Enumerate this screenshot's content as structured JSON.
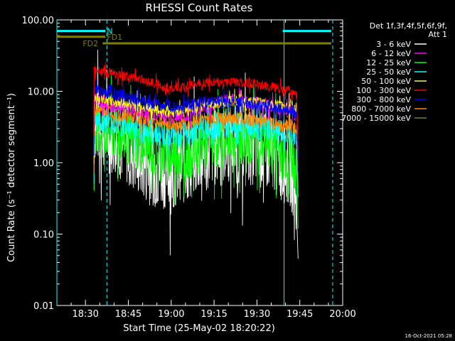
{
  "chart_data": {
    "type": "line",
    "title": "RHESSI Count Rates",
    "xlabel": "Start Time (25-May-02 18:20:22)",
    "ylabel": "Count Rate (s⁻¹ detector segment⁻¹)",
    "yscale": "log",
    "ylim": [
      0.01,
      100
    ],
    "xlim_minutes_after_1820": [
      0,
      100
    ],
    "x_tick_labels": [
      "18:30",
      "18:45",
      "19:00",
      "19:15",
      "19:30",
      "19:45",
      "20:00"
    ],
    "x_tick_minutes": [
      10,
      25,
      40,
      55,
      70,
      85,
      100
    ],
    "y_tick_labels": [
      "0.01",
      "0.10",
      "1.00",
      "10.00",
      "100.00"
    ],
    "y_tick_values": [
      0.01,
      0.1,
      1,
      10,
      100
    ],
    "legend_title": "Det 1f,3f,4f,5f,6f,9f,",
    "legend_subtitle": "Att 1",
    "legend_position": "right",
    "series": [
      {
        "name": "3 - 6 keV",
        "color": "#ffffff",
        "x": [
          13,
          15,
          20,
          25,
          30,
          35,
          40,
          45,
          50,
          55,
          60,
          65,
          70,
          75,
          80,
          82,
          84
        ],
        "values": [
          3.5,
          3.2,
          2.3,
          1.6,
          1.0,
          0.8,
          0.8,
          0.9,
          1.3,
          1.6,
          1.8,
          1.8,
          1.6,
          1.3,
          0.9,
          0.8,
          0.3
        ]
      },
      {
        "name": "6 - 12 keV",
        "color": "#ff00ff",
        "x": [
          13,
          15,
          20,
          25,
          30,
          35,
          40,
          45,
          50,
          55,
          60,
          65,
          70,
          75,
          80,
          82,
          84
        ],
        "values": [
          8.0,
          7.5,
          6.3,
          5.8,
          5.4,
          4.8,
          4.3,
          4.6,
          5.8,
          6.6,
          7.5,
          7.3,
          6.8,
          6.2,
          5.6,
          5.5,
          4.5
        ]
      },
      {
        "name": "12 - 25 keV",
        "color": "#00ff00",
        "x": [
          13,
          15,
          20,
          25,
          30,
          35,
          40,
          45,
          50,
          55,
          60,
          65,
          70,
          75,
          80,
          82,
          84
        ],
        "values": [
          3.3,
          3.1,
          2.6,
          2.2,
          1.7,
          1.4,
          1.3,
          1.4,
          1.7,
          2.0,
          2.2,
          2.2,
          2.0,
          1.7,
          1.3,
          1.2,
          0.8
        ]
      },
      {
        "name": "25 - 50 keV",
        "color": "#00ffff",
        "x": [
          13,
          15,
          20,
          25,
          30,
          35,
          40,
          45,
          50,
          55,
          60,
          65,
          70,
          75,
          80,
          82,
          84
        ],
        "values": [
          4.3,
          4.0,
          3.6,
          3.2,
          2.8,
          2.6,
          2.4,
          2.5,
          2.9,
          3.2,
          3.3,
          3.3,
          3.1,
          2.9,
          2.6,
          2.5,
          2.2
        ]
      },
      {
        "name": "50 - 100 keV",
        "color": "#ffff00",
        "x": [
          13,
          15,
          20,
          25,
          30,
          35,
          40,
          45,
          50,
          55,
          60,
          65,
          70,
          75,
          80,
          82,
          84
        ],
        "values": [
          8.0,
          7.8,
          7.2,
          6.6,
          6.1,
          5.5,
          5.1,
          5.3,
          6.2,
          6.8,
          7.3,
          7.2,
          6.9,
          6.5,
          6.2,
          6.1,
          5.8
        ]
      },
      {
        "name": "100 - 300 keV",
        "color": "#ff0000",
        "x": [
          13,
          15,
          20,
          25,
          30,
          35,
          40,
          45,
          50,
          55,
          60,
          65,
          70,
          75,
          80,
          82,
          84
        ],
        "values": [
          20,
          19,
          17.5,
          16,
          14.5,
          12.5,
          11,
          11.5,
          13,
          13.5,
          13.5,
          13.5,
          12.5,
          11.5,
          10.5,
          10,
          9
        ]
      },
      {
        "name": "300 - 800 keV",
        "color": "#0000ff",
        "x": [
          13,
          15,
          20,
          25,
          30,
          35,
          40,
          45,
          50,
          55,
          60,
          65,
          70,
          75,
          80,
          82,
          84
        ],
        "values": [
          10.5,
          10,
          9.2,
          8.3,
          7.5,
          6.6,
          6.0,
          6.2,
          6.8,
          7.1,
          7.1,
          7.0,
          6.6,
          6.0,
          5.4,
          5.3,
          5.0
        ]
      },
      {
        "name": "800 - 7000 keV",
        "color": "#ff8800",
        "x": [
          13,
          15,
          20,
          25,
          30,
          35,
          40,
          45,
          50,
          55,
          60,
          65,
          70,
          75,
          80,
          82,
          84
        ],
        "values": [
          6.0,
          5.6,
          5.0,
          4.5,
          4.1,
          3.7,
          3.4,
          3.5,
          4.0,
          4.2,
          4.2,
          4.1,
          3.9,
          3.6,
          3.3,
          3.2,
          3.0
        ]
      },
      {
        "name": "7000 - 15000 keV",
        "color": "#808000",
        "x": [],
        "values": []
      }
    ],
    "flag_bars": [
      {
        "label": "N",
        "color": "#00ffff",
        "segments": [
          [
            0,
            17
          ],
          [
            79,
            96
          ]
        ],
        "y": 70
      },
      {
        "label": "FD1",
        "color": "#808000",
        "segments": [
          [
            0,
            17
          ]
        ],
        "y": 58
      },
      {
        "label": "FD2",
        "color": "#808000",
        "segments": [
          [
            16,
            96
          ]
        ],
        "y": 47
      }
    ],
    "vertical_lines": [
      {
        "x": 0,
        "color": "#00ffff",
        "style": "solid"
      },
      {
        "x": 17.5,
        "color": "#00ffff",
        "style": "dashed"
      },
      {
        "x": 79.5,
        "color": "#00ffff",
        "style": "solid"
      },
      {
        "x": 96.5,
        "color": "#00ffff",
        "style": "dashed"
      }
    ],
    "grid": false
  },
  "footer": {
    "timestamp": "16-Oct-2021 05:28"
  }
}
